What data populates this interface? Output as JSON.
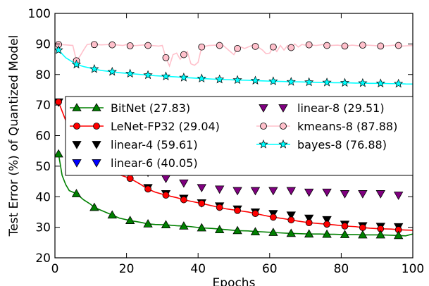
{
  "chart_data": {
    "type": "line",
    "title": "",
    "xlabel": "Epochs",
    "ylabel": "Test Error (%) of Quantized Model",
    "xlim": [
      0,
      100
    ],
    "ylim": [
      20,
      100
    ],
    "grid": false,
    "legend_position": "center",
    "x_ticks": [
      "0",
      "20",
      "40",
      "60",
      "80",
      "100"
    ],
    "y_ticks": [
      "20",
      "30",
      "40",
      "50",
      "60",
      "70",
      "80",
      "90",
      "100"
    ],
    "series": [
      {
        "name": "BitNet (27.83)",
        "color": "#008000",
        "line": true,
        "marker": "triangle-up",
        "marker_color": "#008000",
        "x": [
          1,
          2,
          3,
          4,
          5,
          6,
          8,
          10,
          11,
          13,
          16,
          18,
          21,
          24,
          26,
          28,
          31,
          34,
          36,
          38,
          41,
          44,
          46,
          48,
          51,
          54,
          56,
          58,
          61,
          64,
          66,
          68,
          71,
          74,
          76,
          78,
          81,
          84,
          86,
          88,
          91,
          94,
          96,
          98,
          100
        ],
        "y": [
          54,
          47,
          44,
          42,
          41.5,
          41,
          39,
          37.5,
          36.5,
          35.5,
          34,
          33,
          32.2,
          31.6,
          31.1,
          30.9,
          30.8,
          30.5,
          30.4,
          30.2,
          29.8,
          29.6,
          29.4,
          29.2,
          28.9,
          28.8,
          28.6,
          28.5,
          28.3,
          28.1,
          28,
          27.9,
          27.8,
          27.8,
          27.7,
          27.7,
          27.6,
          27.6,
          27.5,
          27.5,
          27.5,
          27.4,
          27.3,
          27.2,
          27.8
        ],
        "marker_x": [
          1,
          6,
          11,
          16,
          21,
          26,
          31,
          36,
          41,
          46,
          51,
          56,
          61,
          66,
          71,
          76,
          81,
          86,
          91,
          96
        ],
        "marker_y": [
          54,
          41,
          36.5,
          34,
          32.2,
          31.1,
          30.8,
          30.4,
          29.8,
          29.2,
          28.9,
          28.5,
          28.3,
          28,
          27.8,
          27.7,
          27.6,
          27.5,
          27.5,
          27.3
        ]
      },
      {
        "name": "LeNet-FP32 (29.04)",
        "color": "#ff0000",
        "line": true,
        "marker": "circle",
        "marker_color": "#ff0000",
        "x": [
          1,
          3,
          5,
          8,
          11,
          14,
          17,
          19,
          21,
          24,
          26,
          28,
          31,
          34,
          36,
          38,
          41,
          44,
          46,
          48,
          51,
          54,
          56,
          58,
          61,
          64,
          66,
          68,
          71,
          74,
          76,
          78,
          81,
          84,
          86,
          88,
          91,
          94,
          96,
          98,
          100
        ],
        "y": [
          71,
          65,
          60,
          56,
          52,
          49.5,
          47.5,
          46.8,
          46,
          44,
          42.5,
          41.5,
          40.5,
          39.7,
          39,
          38.5,
          37.8,
          37,
          36.5,
          36,
          35.5,
          35,
          34.5,
          34,
          33.3,
          32.8,
          32.4,
          32,
          31.5,
          31.2,
          31,
          30.8,
          30.4,
          30.2,
          29.9,
          29.7,
          29.5,
          29.4,
          29.2,
          29.1,
          29.04
        ],
        "marker_x": [
          1,
          21,
          26,
          31,
          36,
          41,
          46,
          51,
          56,
          61,
          66,
          71,
          76,
          81,
          86,
          91,
          96
        ],
        "marker_y": [
          71,
          46,
          42.5,
          40.5,
          39,
          37.8,
          36.5,
          35.5,
          34.5,
          33.3,
          32.4,
          31.5,
          31,
          30.4,
          29.9,
          29.5,
          29.2
        ]
      },
      {
        "name": "linear-4 (59.61)",
        "color": "#000000",
        "line": false,
        "marker": "triangle-down",
        "marker_color": "#000000",
        "marker_x": [
          1,
          21,
          26,
          31,
          36,
          41,
          46,
          51,
          56,
          61,
          66,
          71,
          76,
          81,
          86,
          91,
          96
        ],
        "marker_y": [
          71,
          47,
          43,
          41,
          39.5,
          38,
          37,
          36,
          35,
          34.5,
          34,
          33,
          32.5,
          31,
          30.5,
          30.3,
          30.2
        ]
      },
      {
        "name": "linear-6 (40.05)",
        "color": "#0000ff",
        "line": false,
        "marker": "triangle-down",
        "marker_color": "#0000ff",
        "marker_x": [],
        "marker_y": []
      },
      {
        "name": "linear-8 (29.51)",
        "color": "#800080",
        "line": false,
        "marker": "triangle-down",
        "marker_color": "#800080",
        "marker_x": [
          1,
          21,
          26,
          31,
          36,
          41,
          46,
          51,
          56,
          61,
          66,
          71,
          76,
          81,
          86,
          91,
          96
        ],
        "marker_y": [
          71,
          50,
          48,
          46,
          44.5,
          43,
          42.5,
          42,
          42,
          42,
          42,
          41.5,
          41.5,
          41,
          41,
          41,
          40.5
        ]
      },
      {
        "name": "kmeans-8 (87.88)",
        "color": "#ffc0cb",
        "line": true,
        "marker": "circle",
        "marker_color": "#ffc0cb",
        "x": [
          0,
          1,
          3,
          5,
          6,
          7,
          8,
          9,
          10,
          11,
          13,
          15,
          17,
          19,
          20,
          21,
          23,
          25,
          27,
          29,
          30,
          31,
          32,
          33,
          34,
          35,
          36,
          37,
          38,
          39,
          40,
          41,
          43,
          45,
          47,
          49,
          50,
          51,
          52,
          53,
          55,
          56,
          57,
          58,
          59,
          60,
          61,
          62,
          63,
          64,
          65,
          66,
          67,
          68,
          69,
          70,
          71,
          73,
          75,
          77,
          79,
          81,
          83,
          85,
          87,
          89,
          91,
          93,
          95,
          97,
          100
        ],
        "y": [
          90,
          89.8,
          89.7,
          89.5,
          84.5,
          86,
          88,
          89.8,
          90,
          89.8,
          89.7,
          89.8,
          89.7,
          89.5,
          89.8,
          89.4,
          89.5,
          89.7,
          89.5,
          89.3,
          89.5,
          85.5,
          82.8,
          86.5,
          87,
          85,
          86.5,
          87.5,
          83.5,
          83,
          84,
          89,
          89.5,
          89.6,
          89.5,
          87.5,
          86.5,
          88.5,
          89,
          88.5,
          89.5,
          89.2,
          88.8,
          88,
          86.8,
          87,
          89,
          87.5,
          89.5,
          88,
          89.5,
          88.8,
          90,
          89,
          89.8,
          89.6,
          89.7,
          89.5,
          89.8,
          89.5,
          89.6,
          89.3,
          89.6,
          89.4,
          89.6,
          89.5,
          89.3,
          89.4,
          89.6,
          89.3,
          89.5
        ],
        "marker_x": [
          1,
          6,
          11,
          16,
          21,
          26,
          31,
          36,
          41,
          46,
          51,
          56,
          61,
          66,
          71,
          76,
          81,
          86,
          91,
          96
        ],
        "marker_y": [
          89.8,
          84.5,
          89.8,
          89.7,
          89.4,
          89.5,
          85.5,
          86.5,
          89,
          89.5,
          88.5,
          89.2,
          89,
          88.8,
          89.7,
          89.5,
          89.3,
          89.6,
          89.3,
          89.5
        ]
      },
      {
        "name": "bayes-8 (76.88)",
        "color": "#00ffff",
        "line": true,
        "marker": "star",
        "marker_color": "#00ffff",
        "x": [
          1,
          3,
          6,
          8,
          11,
          13,
          16,
          18,
          21,
          24,
          26,
          28,
          31,
          34,
          36,
          38,
          41,
          44,
          46,
          48,
          51,
          54,
          56,
          58,
          61,
          64,
          66,
          68,
          71,
          74,
          76,
          78,
          81,
          84,
          86,
          88,
          91,
          94,
          96,
          98,
          100
        ],
        "y": [
          88,
          85.5,
          83.3,
          82.6,
          81.8,
          81.3,
          80.9,
          80.6,
          80.3,
          80,
          79.8,
          79.6,
          79.4,
          79.2,
          79,
          78.9,
          78.7,
          78.5,
          78.4,
          78.3,
          78.2,
          78.1,
          78,
          77.9,
          77.8,
          77.7,
          77.6,
          77.6,
          77.5,
          77.4,
          77.4,
          77.3,
          77.3,
          77.2,
          77.2,
          77.1,
          77.1,
          77,
          77,
          76.9,
          76.88
        ],
        "marker_x": [
          1,
          6,
          11,
          16,
          21,
          26,
          31,
          36,
          41,
          46,
          51,
          56,
          61,
          66,
          71,
          76,
          81,
          86,
          91,
          96
        ],
        "marker_y": [
          88,
          83.3,
          81.8,
          80.9,
          80.3,
          79.8,
          79.4,
          79,
          78.7,
          78.4,
          78.2,
          78,
          77.8,
          77.6,
          77.5,
          77.4,
          77.3,
          77.2,
          77.1,
          77
        ]
      }
    ]
  }
}
